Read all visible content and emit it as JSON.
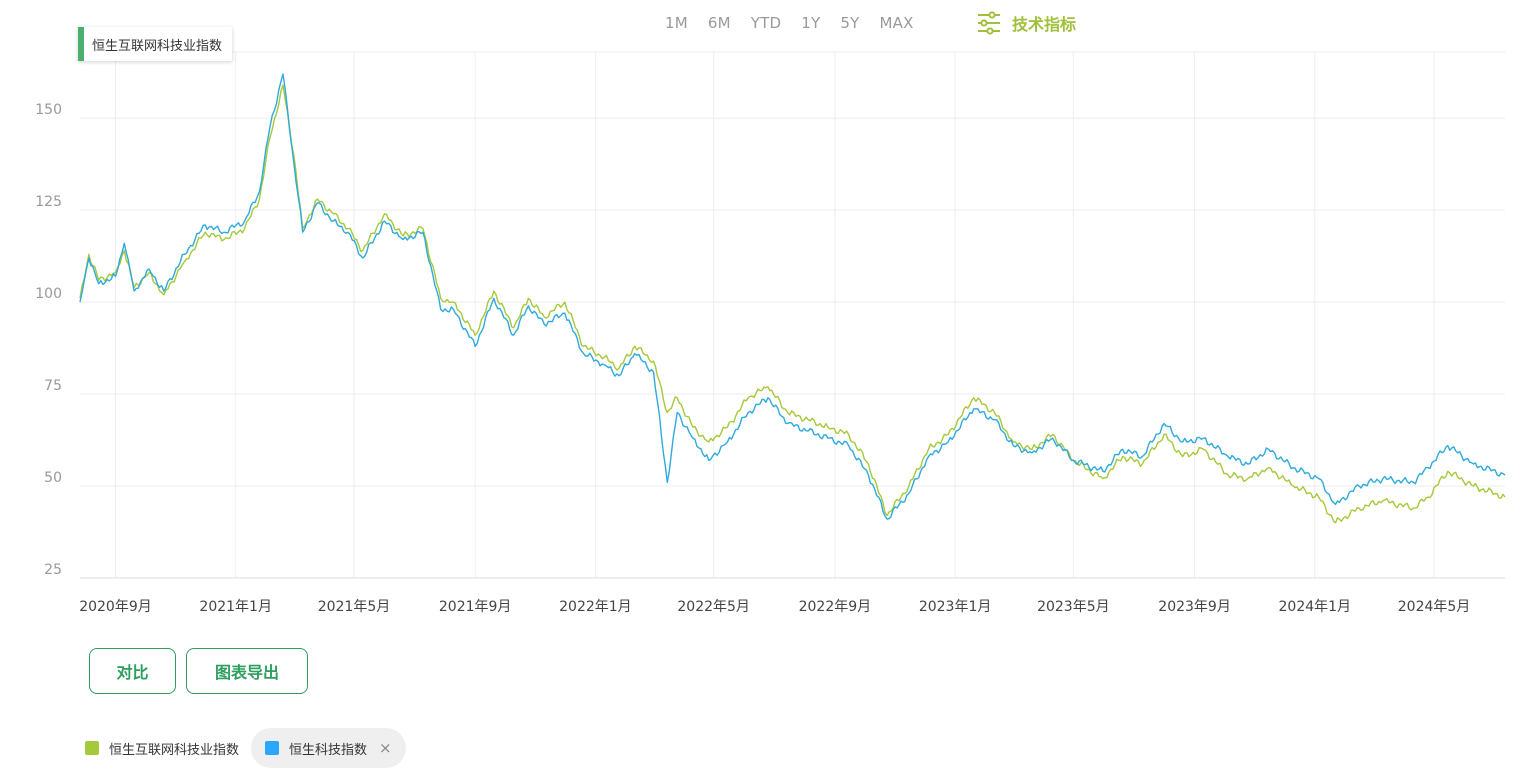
{
  "range_buttons": [
    "1M",
    "6M",
    "YTD",
    "1Y",
    "5Y",
    "MAX"
  ],
  "tech_indicator_label": "技术指标",
  "series_tag": "恒生互联网科技业指数",
  "buttons": {
    "compare": "对比",
    "export": "图表导出"
  },
  "legend": [
    {
      "name": "恒生互联网科技业指数",
      "color": "#a5c93a",
      "removable": false
    },
    {
      "name": "恒生科技指数",
      "color": "#2aa8ff",
      "removable": true,
      "close": "×"
    }
  ],
  "colors": {
    "series1": "#a5c93a",
    "series2": "#2eaadc",
    "grid": "#eeeeee",
    "axis_text": "#999999"
  },
  "chart_data": {
    "type": "line",
    "y_ticks": [
      25,
      50,
      75,
      100,
      125,
      150
    ],
    "ylim": [
      25,
      168
    ],
    "x_ticks": [
      "2020年9月",
      "2021年1月",
      "2021年5月",
      "2021年9月",
      "2022年1月",
      "2022年5月",
      "2022年9月",
      "2023年1月",
      "2023年5月",
      "2023年9月",
      "2024年1月",
      "2024年5月"
    ],
    "x_start": "2020-07-27",
    "x_end": "2024-07-12",
    "tick_dates": [
      "2020-09-01",
      "2021-01-01",
      "2021-05-01",
      "2021-09-01",
      "2022-01-01",
      "2022-05-01",
      "2022-09-01",
      "2023-01-01",
      "2023-05-01",
      "2023-09-01",
      "2024-01-01",
      "2024-05-01"
    ],
    "series": [
      {
        "name": "恒生互联网科技业指数",
        "color": "#a5c93a",
        "points": [
          [
            "2020-07-27",
            101
          ],
          [
            "2020-08-05",
            113
          ],
          [
            "2020-08-15",
            106
          ],
          [
            "2020-09-01",
            108
          ],
          [
            "2020-09-10",
            114
          ],
          [
            "2020-09-20",
            104
          ],
          [
            "2020-10-05",
            108
          ],
          [
            "2020-10-20",
            102
          ],
          [
            "2020-11-10",
            111
          ],
          [
            "2020-12-01",
            119
          ],
          [
            "2020-12-20",
            117
          ],
          [
            "2021-01-10",
            120
          ],
          [
            "2021-01-25",
            128
          ],
          [
            "2021-02-05",
            145
          ],
          [
            "2021-02-18",
            159
          ],
          [
            "2021-03-01",
            140
          ],
          [
            "2021-03-10",
            120
          ],
          [
            "2021-03-25",
            128
          ],
          [
            "2021-04-10",
            124
          ],
          [
            "2021-04-25",
            120
          ],
          [
            "2021-05-10",
            114
          ],
          [
            "2021-06-01",
            124
          ],
          [
            "2021-06-20",
            118
          ],
          [
            "2021-07-10",
            120
          ],
          [
            "2021-07-28",
            101
          ],
          [
            "2021-08-10",
            100
          ],
          [
            "2021-09-01",
            91
          ],
          [
            "2021-09-20",
            103
          ],
          [
            "2021-10-10",
            93
          ],
          [
            "2021-10-25",
            101
          ],
          [
            "2021-11-10",
            96
          ],
          [
            "2021-12-01",
            100
          ],
          [
            "2021-12-20",
            88
          ],
          [
            "2022-01-10",
            85
          ],
          [
            "2022-01-25",
            82
          ],
          [
            "2022-02-10",
            88
          ],
          [
            "2022-03-01",
            84
          ],
          [
            "2022-03-15",
            70
          ],
          [
            "2022-03-25",
            74
          ],
          [
            "2022-04-10",
            66
          ],
          [
            "2022-04-26",
            62
          ],
          [
            "2022-05-15",
            66
          ],
          [
            "2022-06-05",
            74
          ],
          [
            "2022-06-25",
            77
          ],
          [
            "2022-07-15",
            70
          ],
          [
            "2022-08-05",
            68
          ],
          [
            "2022-08-25",
            66
          ],
          [
            "2022-09-15",
            64
          ],
          [
            "2022-10-05",
            56
          ],
          [
            "2022-10-24",
            42
          ],
          [
            "2022-11-15",
            50
          ],
          [
            "2022-12-05",
            60
          ],
          [
            "2022-12-25",
            64
          ],
          [
            "2023-01-20",
            74
          ],
          [
            "2023-02-10",
            70
          ],
          [
            "2023-03-01",
            62
          ],
          [
            "2023-03-20",
            60
          ],
          [
            "2023-04-10",
            64
          ],
          [
            "2023-05-01",
            57
          ],
          [
            "2023-05-31",
            52
          ],
          [
            "2023-06-20",
            58
          ],
          [
            "2023-07-10",
            56
          ],
          [
            "2023-08-01",
            64
          ],
          [
            "2023-08-20",
            58
          ],
          [
            "2023-09-10",
            60
          ],
          [
            "2023-10-05",
            53
          ],
          [
            "2023-10-25",
            52
          ],
          [
            "2023-11-15",
            55
          ],
          [
            "2023-12-10",
            50
          ],
          [
            "2024-01-05",
            47
          ],
          [
            "2024-01-22",
            40
          ],
          [
            "2024-02-15",
            44
          ],
          [
            "2024-03-10",
            46
          ],
          [
            "2024-04-10",
            44
          ],
          [
            "2024-04-25",
            47
          ],
          [
            "2024-05-15",
            54
          ],
          [
            "2024-06-10",
            50
          ],
          [
            "2024-07-12",
            47
          ]
        ]
      },
      {
        "name": "恒生科技指数",
        "color": "#2eaadc",
        "points": [
          [
            "2020-07-27",
            100
          ],
          [
            "2020-08-05",
            112
          ],
          [
            "2020-08-15",
            105
          ],
          [
            "2020-09-01",
            107
          ],
          [
            "2020-09-10",
            116
          ],
          [
            "2020-09-20",
            103
          ],
          [
            "2020-10-05",
            109
          ],
          [
            "2020-10-20",
            103
          ],
          [
            "2020-11-10",
            113
          ],
          [
            "2020-12-01",
            121
          ],
          [
            "2020-12-20",
            119
          ],
          [
            "2021-01-10",
            122
          ],
          [
            "2021-01-25",
            130
          ],
          [
            "2021-02-05",
            148
          ],
          [
            "2021-02-18",
            162
          ],
          [
            "2021-03-01",
            138
          ],
          [
            "2021-03-10",
            119
          ],
          [
            "2021-03-25",
            127
          ],
          [
            "2021-04-10",
            122
          ],
          [
            "2021-04-25",
            119
          ],
          [
            "2021-05-10",
            112
          ],
          [
            "2021-06-01",
            122
          ],
          [
            "2021-06-20",
            117
          ],
          [
            "2021-07-10",
            119
          ],
          [
            "2021-07-28",
            98
          ],
          [
            "2021-08-10",
            98
          ],
          [
            "2021-09-01",
            88
          ],
          [
            "2021-09-20",
            101
          ],
          [
            "2021-10-10",
            91
          ],
          [
            "2021-10-25",
            99
          ],
          [
            "2021-11-10",
            94
          ],
          [
            "2021-12-01",
            97
          ],
          [
            "2021-12-20",
            86
          ],
          [
            "2022-01-10",
            83
          ],
          [
            "2022-01-25",
            80
          ],
          [
            "2022-02-10",
            86
          ],
          [
            "2022-03-01",
            81
          ],
          [
            "2022-03-15",
            51
          ],
          [
            "2022-03-25",
            70
          ],
          [
            "2022-04-10",
            63
          ],
          [
            "2022-04-26",
            57
          ],
          [
            "2022-05-15",
            62
          ],
          [
            "2022-06-05",
            70
          ],
          [
            "2022-06-25",
            74
          ],
          [
            "2022-07-15",
            67
          ],
          [
            "2022-08-05",
            65
          ],
          [
            "2022-08-25",
            63
          ],
          [
            "2022-09-15",
            61
          ],
          [
            "2022-10-05",
            53
          ],
          [
            "2022-10-24",
            41
          ],
          [
            "2022-11-15",
            48
          ],
          [
            "2022-12-05",
            58
          ],
          [
            "2022-12-25",
            62
          ],
          [
            "2023-01-20",
            71
          ],
          [
            "2023-02-10",
            68
          ],
          [
            "2023-03-01",
            61
          ],
          [
            "2023-03-20",
            59
          ],
          [
            "2023-04-10",
            63
          ],
          [
            "2023-05-01",
            57
          ],
          [
            "2023-05-31",
            54
          ],
          [
            "2023-06-20",
            60
          ],
          [
            "2023-07-10",
            58
          ],
          [
            "2023-08-01",
            67
          ],
          [
            "2023-08-20",
            62
          ],
          [
            "2023-09-10",
            63
          ],
          [
            "2023-10-05",
            58
          ],
          [
            "2023-10-25",
            56
          ],
          [
            "2023-11-15",
            60
          ],
          [
            "2023-12-10",
            55
          ],
          [
            "2024-01-05",
            52
          ],
          [
            "2024-01-22",
            45
          ],
          [
            "2024-02-15",
            50
          ],
          [
            "2024-03-10",
            52
          ],
          [
            "2024-04-10",
            51
          ],
          [
            "2024-04-25",
            55
          ],
          [
            "2024-05-15",
            61
          ],
          [
            "2024-06-10",
            56
          ],
          [
            "2024-07-12",
            53
          ]
        ]
      }
    ]
  }
}
